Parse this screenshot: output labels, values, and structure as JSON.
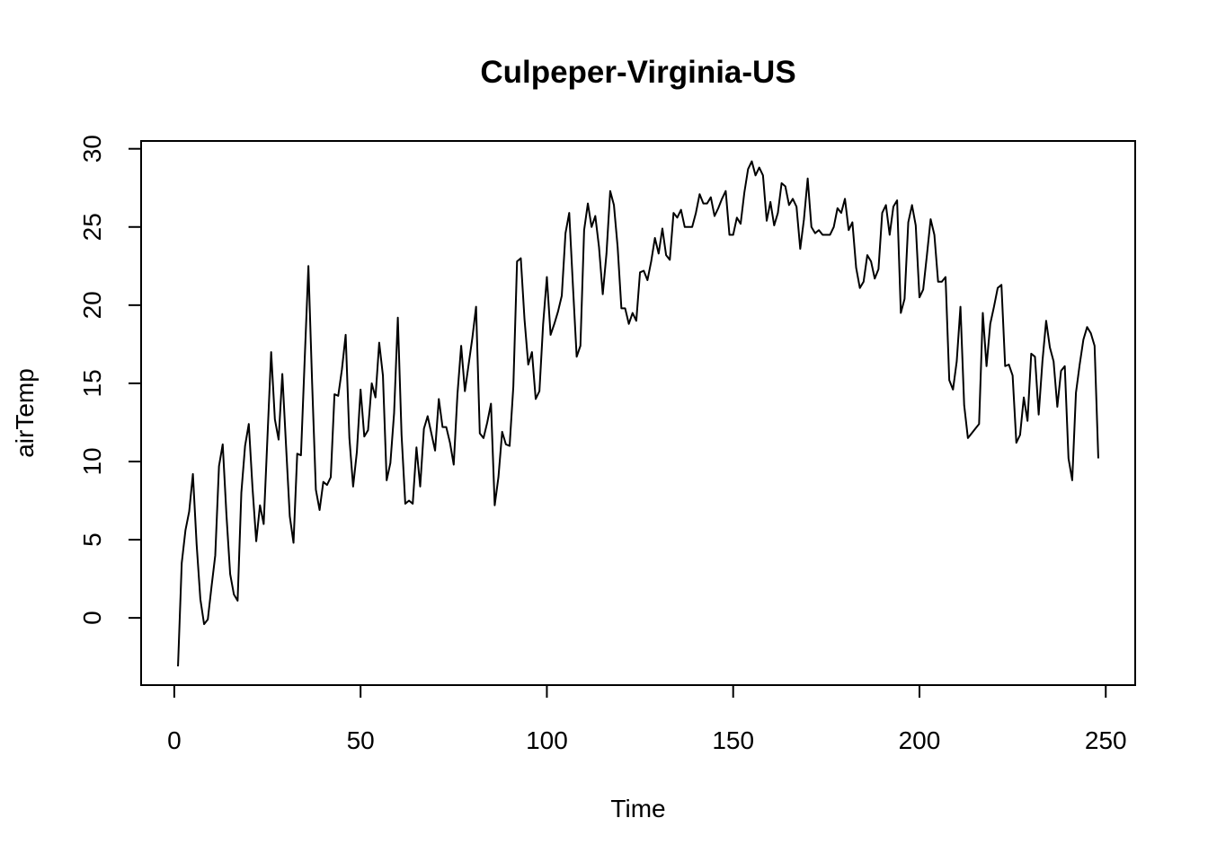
{
  "chart_data": {
    "type": "line",
    "title": "Culpeper-Virginia-US",
    "xlabel": "Time",
    "ylabel": "airTemp",
    "xlim": [
      -8.9,
      257.9
    ],
    "ylim": [
      -4.3,
      30.5
    ],
    "x_ticks": [
      0,
      50,
      100,
      150,
      200,
      250
    ],
    "y_ticks": [
      0,
      5,
      10,
      15,
      20,
      25,
      30
    ],
    "grid": false,
    "legend": "none",
    "colors": {
      "line": "#000000",
      "axis": "#000000",
      "background": "#ffffff"
    },
    "series": [
      {
        "x_start": 1,
        "values": [
          -3.1,
          3.5,
          5.6,
          6.8,
          9.2,
          4.7,
          1.2,
          -0.4,
          -0.1,
          2.0,
          4.0,
          9.7,
          11.1,
          6.6,
          2.8,
          1.5,
          1.1,
          8.0,
          11.0,
          12.4,
          8.3,
          4.9,
          7.2,
          6.0,
          11.5,
          17.0,
          12.7,
          11.4,
          15.6,
          11.0,
          6.5,
          4.8,
          10.5,
          10.4,
          16.5,
          22.5,
          15.0,
          8.2,
          6.9,
          8.7,
          8.5,
          9.0,
          14.3,
          14.2,
          15.9,
          18.1,
          11.5,
          8.4,
          10.6,
          14.6,
          11.6,
          12.0,
          15.0,
          14.1,
          17.6,
          15.5,
          8.8,
          9.9,
          13.1,
          19.2,
          11.7,
          7.3,
          7.5,
          7.3,
          10.9,
          8.4,
          12.1,
          12.9,
          11.8,
          10.7,
          14.0,
          12.2,
          12.2,
          11.2,
          9.8,
          14.3,
          17.4,
          14.5,
          16.2,
          17.9,
          19.9,
          11.8,
          11.5,
          12.5,
          13.7,
          7.2,
          9.0,
          11.9,
          11.1,
          11.0,
          14.8,
          22.8,
          23.0,
          19.1,
          16.2,
          17.0,
          14.0,
          14.5,
          18.8,
          21.8,
          18.1,
          18.8,
          19.6,
          20.6,
          24.6,
          25.9,
          21.2,
          16.7,
          17.4,
          24.8,
          26.5,
          25.0,
          25.7,
          23.7,
          20.7,
          23.3,
          27.3,
          26.4,
          23.7,
          19.8,
          19.8,
          18.8,
          19.5,
          19.0,
          22.1,
          22.2,
          21.6,
          22.8,
          24.3,
          23.3,
          24.9,
          23.2,
          22.9,
          25.9,
          25.6,
          26.1,
          25.0,
          25.0,
          25.0,
          25.9,
          27.1,
          26.5,
          26.5,
          26.9,
          25.7,
          26.2,
          26.8,
          27.3,
          24.5,
          24.5,
          25.6,
          25.2,
          27.2,
          28.7,
          29.2,
          28.3,
          28.8,
          28.3,
          25.4,
          26.6,
          25.1,
          25.9,
          27.8,
          27.6,
          26.4,
          26.8,
          26.3,
          23.6,
          25.5,
          28.1,
          25.0,
          24.6,
          24.8,
          24.5,
          24.5,
          24.5,
          25.0,
          26.2,
          25.9,
          26.8,
          24.8,
          25.3,
          22.4,
          21.1,
          21.5,
          23.2,
          22.8,
          21.7,
          22.3,
          25.9,
          26.4,
          24.5,
          26.3,
          26.7,
          19.5,
          20.4,
          25.3,
          26.4,
          25.1,
          20.5,
          21.0,
          23.2,
          25.5,
          24.5,
          21.5,
          21.5,
          21.8,
          15.2,
          14.6,
          16.4,
          19.9,
          13.6,
          11.5,
          11.8,
          12.1,
          12.4,
          19.5,
          16.1,
          18.8,
          19.9,
          21.1,
          21.3,
          16.1,
          16.2,
          15.5,
          11.2,
          11.7,
          14.1,
          12.6,
          16.9,
          16.7,
          13.0,
          16.4,
          19.0,
          17.3,
          16.4,
          13.5,
          15.8,
          16.1,
          10.2,
          8.8,
          14.4,
          16.2,
          17.8,
          18.6,
          18.2,
          17.4,
          10.2
        ]
      }
    ]
  }
}
